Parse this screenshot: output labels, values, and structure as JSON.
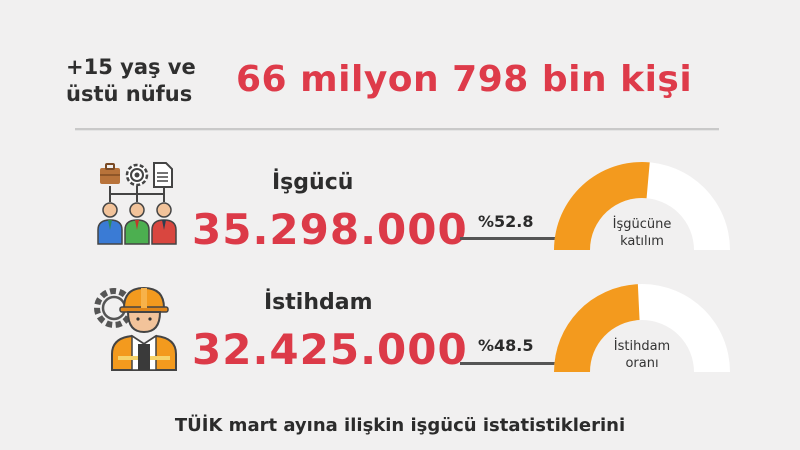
{
  "header": {
    "label": "+15 yaş ve üstü nüfus",
    "value": "66 milyon 798 bin kişi"
  },
  "stats": [
    {
      "title": "İşgücü",
      "value": "35.298.000",
      "percent_label": "%52.8",
      "percent": 52.8,
      "gauge_label_line1": "İşgücüne",
      "gauge_label_line2": "katılım",
      "icon": "workforce-team-icon"
    },
    {
      "title": "İstihdam",
      "value": "32.425.000",
      "percent_label": "%48.5",
      "percent": 48.5,
      "gauge_label_line1": "İstihdam",
      "gauge_label_line2": "oranı",
      "icon": "worker-gear-icon"
    }
  ],
  "footer": {
    "text": "TÜİK mart ayına ilişkin işgücü istatistiklerini"
  },
  "colors": {
    "accent_red": "#de3b4a",
    "gauge_orange": "#f39a1e",
    "gauge_track": "#ffffff"
  }
}
